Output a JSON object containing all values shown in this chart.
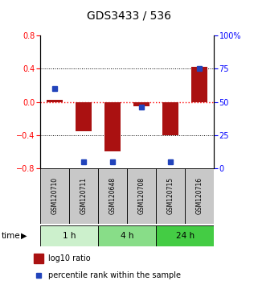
{
  "title": "GDS3433 / 536",
  "samples": [
    "GSM120710",
    "GSM120711",
    "GSM120648",
    "GSM120708",
    "GSM120715",
    "GSM120716"
  ],
  "log10_ratio": [
    0.02,
    -0.35,
    -0.6,
    -0.05,
    -0.4,
    0.42
  ],
  "percentile_rank": [
    60,
    5,
    5,
    46,
    5,
    75
  ],
  "time_groups": [
    {
      "label": "1 h",
      "start": 0,
      "end": 2,
      "color": "#ccf0cc"
    },
    {
      "label": "4 h",
      "start": 2,
      "end": 4,
      "color": "#88dd88"
    },
    {
      "label": "24 h",
      "start": 4,
      "end": 6,
      "color": "#44cc44"
    }
  ],
  "bar_color": "#aa1111",
  "dot_color": "#2244bb",
  "left_ylim": [
    -0.8,
    0.8
  ],
  "right_ylim": [
    0,
    100
  ],
  "left_yticks": [
    -0.8,
    -0.4,
    0.0,
    0.4,
    0.8
  ],
  "right_yticks": [
    0,
    25,
    50,
    75,
    100
  ],
  "right_yticklabels": [
    "0",
    "25",
    "50",
    "75",
    "100%"
  ],
  "bg_color_samples": "#c8c8c8",
  "legend_ratio_label": "log10 ratio",
  "legend_pct_label": "percentile rank within the sample",
  "title_fontsize": 10,
  "tick_fontsize": 7,
  "sample_fontsize": 5.5,
  "time_fontsize": 7.5,
  "legend_fontsize": 7
}
